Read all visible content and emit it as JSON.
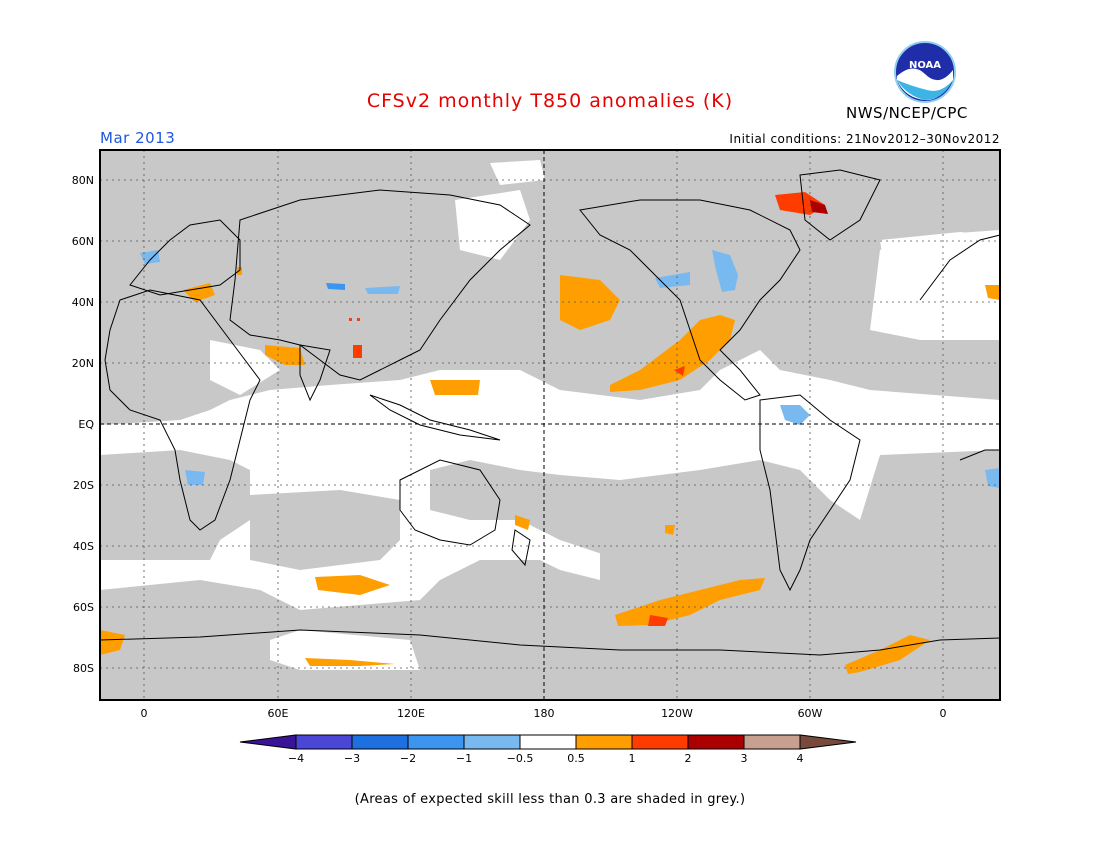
{
  "header": {
    "title": "CFSv2 monthly T850 anomalies (K)",
    "agency": "NWS/NCEP/CPC",
    "month": "Mar 2013",
    "initial_conditions": "Initial conditions: 21Nov2012–30Nov2012",
    "logo_text": "NOAA"
  },
  "map": {
    "lat_labels": [
      "80N",
      "60N",
      "40N",
      "20N",
      "EQ",
      "20S",
      "40S",
      "60S",
      "80S"
    ],
    "lon_labels": [
      "0",
      "60E",
      "120E",
      "180",
      "120W",
      "60W",
      "0"
    ],
    "grey_color": "#c8c8c8"
  },
  "colorbar": {
    "tick_labels": [
      "−4",
      "−3",
      "−2",
      "−1",
      "−0.5",
      "0.5",
      "1",
      "2",
      "3",
      "4"
    ],
    "colors": [
      "#3a1496",
      "#4a46d6",
      "#1e6fe0",
      "#3c96f0",
      "#78b9f0",
      "#ffffff",
      "#ff9e00",
      "#ff3c00",
      "#aa0000",
      "#c8a090",
      "#784a3c"
    ]
  },
  "footer": {
    "note": "(Areas of expected skill less than 0.3 are shaded in grey.)"
  }
}
